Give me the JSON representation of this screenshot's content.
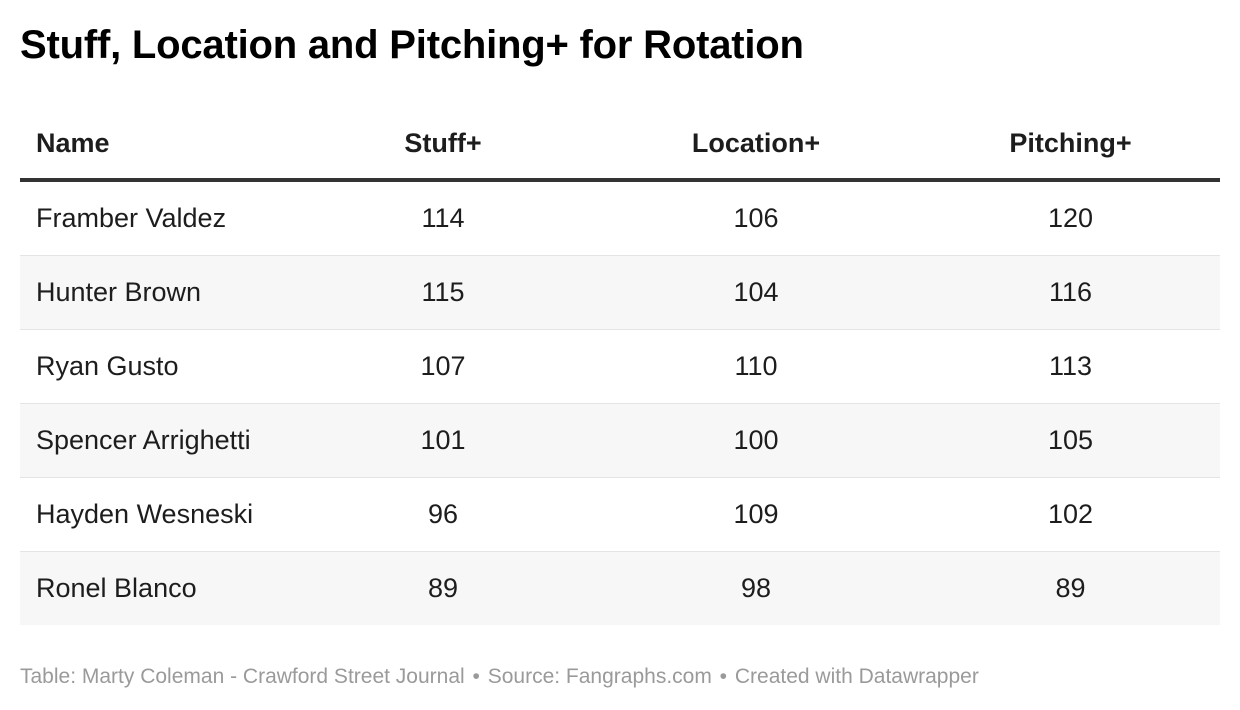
{
  "title": "Stuff, Location and Pitching+ for Rotation",
  "table": {
    "headers": [
      "Name",
      "Stuff+",
      "Location+",
      "Pitching+"
    ],
    "rows": [
      [
        "Framber Valdez",
        "114",
        "106",
        "120"
      ],
      [
        "Hunter Brown",
        "115",
        "104",
        "116"
      ],
      [
        "Ryan Gusto",
        "107",
        "110",
        "113"
      ],
      [
        "Spencer Arrighetti",
        "101",
        "100",
        "105"
      ],
      [
        "Hayden Wesneski",
        "96",
        "109",
        "102"
      ],
      [
        "Ronel Blanco",
        "89",
        "98",
        "89"
      ]
    ]
  },
  "footer": {
    "table_credit": "Table: Marty Coleman - Crawford Street Journal",
    "separator": "•",
    "source": "Source: Fangraphs.com",
    "created_with": "Created with Datawrapper"
  }
}
